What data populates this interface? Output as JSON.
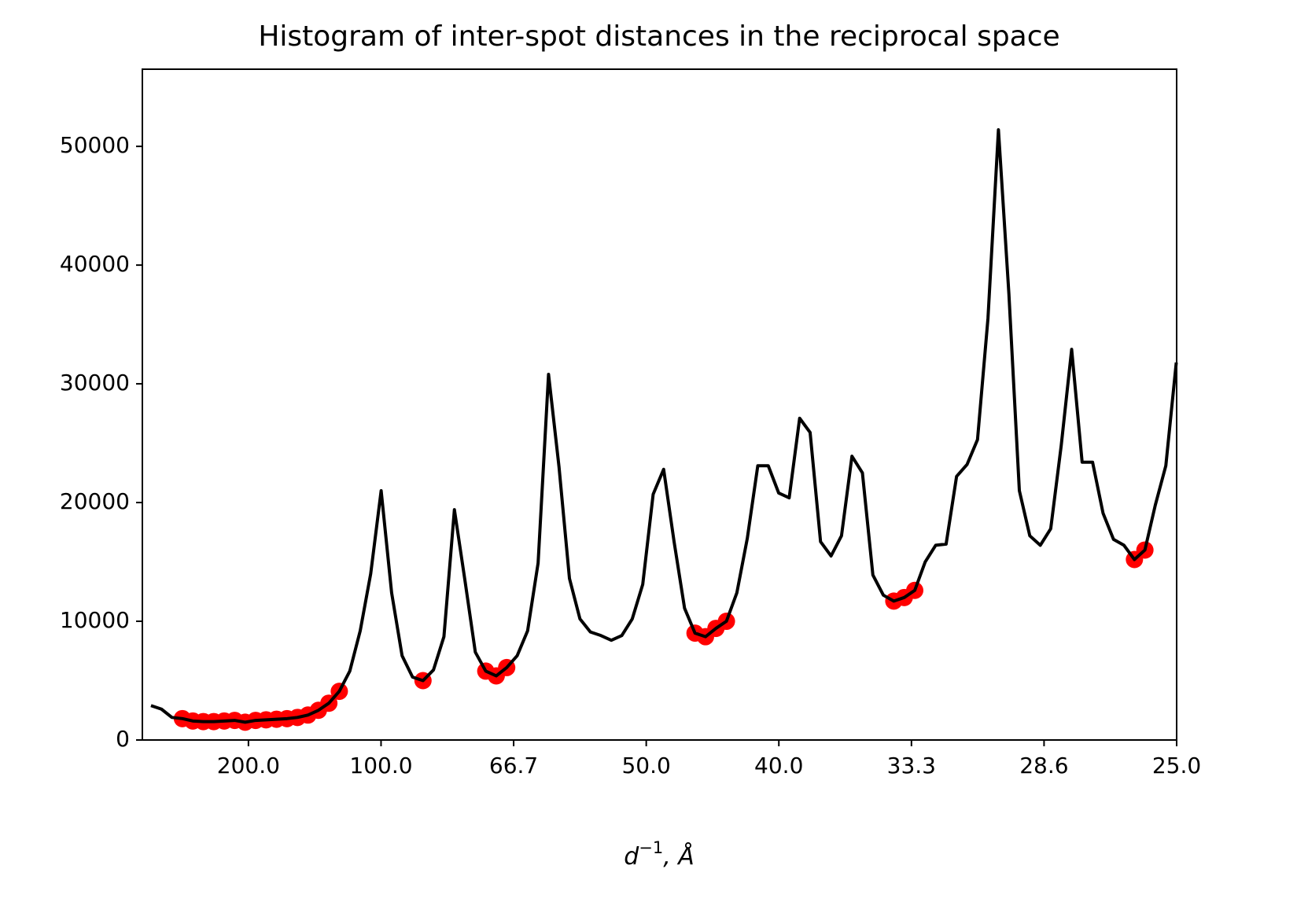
{
  "chart_data": {
    "type": "line",
    "title": "Histogram of inter-spot distances in the reciprocal space",
    "xlabel": {
      "base": "d",
      "sup": "−1",
      "rest": ", Å"
    },
    "xlim": [
      0.001,
      0.04
    ],
    "ylim": [
      0,
      56500
    ],
    "xticks": [
      {
        "value": 0.005,
        "label": "200.0"
      },
      {
        "value": 0.01,
        "label": "100.0"
      },
      {
        "value": 0.015,
        "label": "66.7"
      },
      {
        "value": 0.02,
        "label": "50.0"
      },
      {
        "value": 0.025,
        "label": "40.0"
      },
      {
        "value": 0.03,
        "label": "33.3"
      },
      {
        "value": 0.035,
        "label": "28.6"
      },
      {
        "value": 0.04,
        "label": "25.0"
      }
    ],
    "yticks": [
      0,
      10000,
      20000,
      30000,
      40000,
      50000
    ],
    "grid": false,
    "x": [
      0.001325,
      0.00172,
      0.002114,
      0.002509,
      0.002903,
      0.003298,
      0.003692,
      0.004087,
      0.004481,
      0.004876,
      0.00527,
      0.005665,
      0.006059,
      0.006454,
      0.006848,
      0.007243,
      0.007637,
      0.008032,
      0.008426,
      0.008821,
      0.009215,
      0.00961,
      0.010004,
      0.010399,
      0.010793,
      0.011188,
      0.011582,
      0.011977,
      0.012371,
      0.012766,
      0.01316,
      0.013555,
      0.013949,
      0.014344,
      0.014738,
      0.015133,
      0.015527,
      0.015922,
      0.016316,
      0.016711,
      0.017105,
      0.0175,
      0.017894,
      0.018289,
      0.018683,
      0.019078,
      0.019472,
      0.019867,
      0.020261,
      0.020656,
      0.02105,
      0.021445,
      0.021839,
      0.022234,
      0.022628,
      0.023023,
      0.023417,
      0.023812,
      0.024206,
      0.024601,
      0.024995,
      0.02539,
      0.025784,
      0.026179,
      0.026573,
      0.026968,
      0.027362,
      0.027757,
      0.028151,
      0.028546,
      0.02894,
      0.029335,
      0.029729,
      0.030124,
      0.030518,
      0.030913,
      0.031307,
      0.031702,
      0.032096,
      0.032491,
      0.032885,
      0.03328,
      0.033674,
      0.034069,
      0.034463,
      0.034858,
      0.035252,
      0.035647,
      0.036041,
      0.036436,
      0.03683,
      0.037225,
      0.037619,
      0.038014,
      0.038408,
      0.038803,
      0.039197,
      0.039592,
      0.039986
    ],
    "series": [
      {
        "type": "line",
        "color": "#000000",
        "values": [
          2900,
          2600,
          1900,
          1800,
          1600,
          1550,
          1550,
          1600,
          1650,
          1500,
          1650,
          1700,
          1750,
          1800,
          1900,
          2100,
          2500,
          3100,
          4100,
          5800,
          9200,
          14000,
          21000,
          12400,
          7100,
          5300,
          5000,
          5900,
          8700,
          19400,
          13500,
          7400,
          5800,
          5400,
          6100,
          7100,
          9200,
          14900,
          30800,
          23000,
          13600,
          10200,
          9100,
          8800,
          8400,
          8800,
          10200,
          13100,
          20700,
          22800,
          16700,
          11100,
          9000,
          8700,
          9400,
          10000,
          12400,
          17000,
          23100,
          23100,
          20800,
          20400,
          27100,
          25900,
          16700,
          15500,
          17200,
          23900,
          22500,
          13900,
          12200,
          11700,
          12000,
          12600,
          15000,
          16400,
          16500,
          22200,
          23200,
          25300,
          35500,
          51400,
          37600,
          21000,
          17200,
          16400,
          17800,
          24800,
          32900,
          23400,
          23400,
          19100,
          16900,
          16400,
          15200,
          16000,
          19800,
          23100,
          31800
        ]
      },
      {
        "type": "scatter",
        "color": "#ff0000",
        "x": [
          0.002509,
          0.002903,
          0.003298,
          0.003692,
          0.004087,
          0.004481,
          0.004876,
          0.00527,
          0.005665,
          0.006059,
          0.006454,
          0.006848,
          0.007243,
          0.007637,
          0.008032,
          0.008426,
          0.011582,
          0.013949,
          0.014344,
          0.014738,
          0.021839,
          0.022234,
          0.022628,
          0.023023,
          0.029335,
          0.029729,
          0.030124,
          0.038408,
          0.038803
        ],
        "values": [
          1800,
          1600,
          1550,
          1550,
          1600,
          1650,
          1500,
          1650,
          1700,
          1750,
          1800,
          1900,
          2100,
          2500,
          3100,
          4100,
          5000,
          5800,
          5400,
          6100,
          9000,
          8700,
          9400,
          10000,
          11700,
          12000,
          12600,
          15200,
          16000
        ]
      }
    ]
  }
}
